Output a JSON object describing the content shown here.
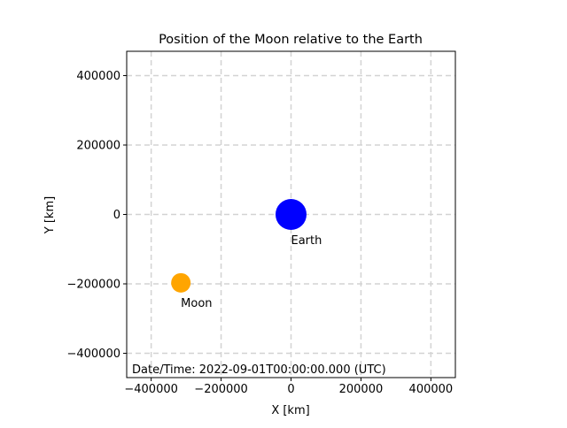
{
  "chart_data": {
    "type": "scatter",
    "title": "Position of the Moon relative to the Earth",
    "xlabel": "X [km]",
    "ylabel": "Y [km]",
    "xlim": [
      -470000,
      470000
    ],
    "ylim": [
      -470000,
      470000
    ],
    "xticks": [
      -400000,
      -200000,
      0,
      200000,
      400000
    ],
    "yticks": [
      -400000,
      -200000,
      0,
      200000,
      400000
    ],
    "xtick_labels": [
      "−400000",
      "−200000",
      "0",
      "200000",
      "400000"
    ],
    "ytick_labels": [
      "−400000",
      "−200000",
      "0",
      "200000",
      "400000"
    ],
    "grid": true,
    "bodies": [
      {
        "name": "Earth",
        "x": 0,
        "y": 0,
        "color": "#0000ff"
      },
      {
        "name": "Moon",
        "x": -315000,
        "y": -197000,
        "color": "#ffa500"
      }
    ],
    "annotation": "Date/Time: 2022-09-01T00:00:00.000 (UTC)"
  }
}
